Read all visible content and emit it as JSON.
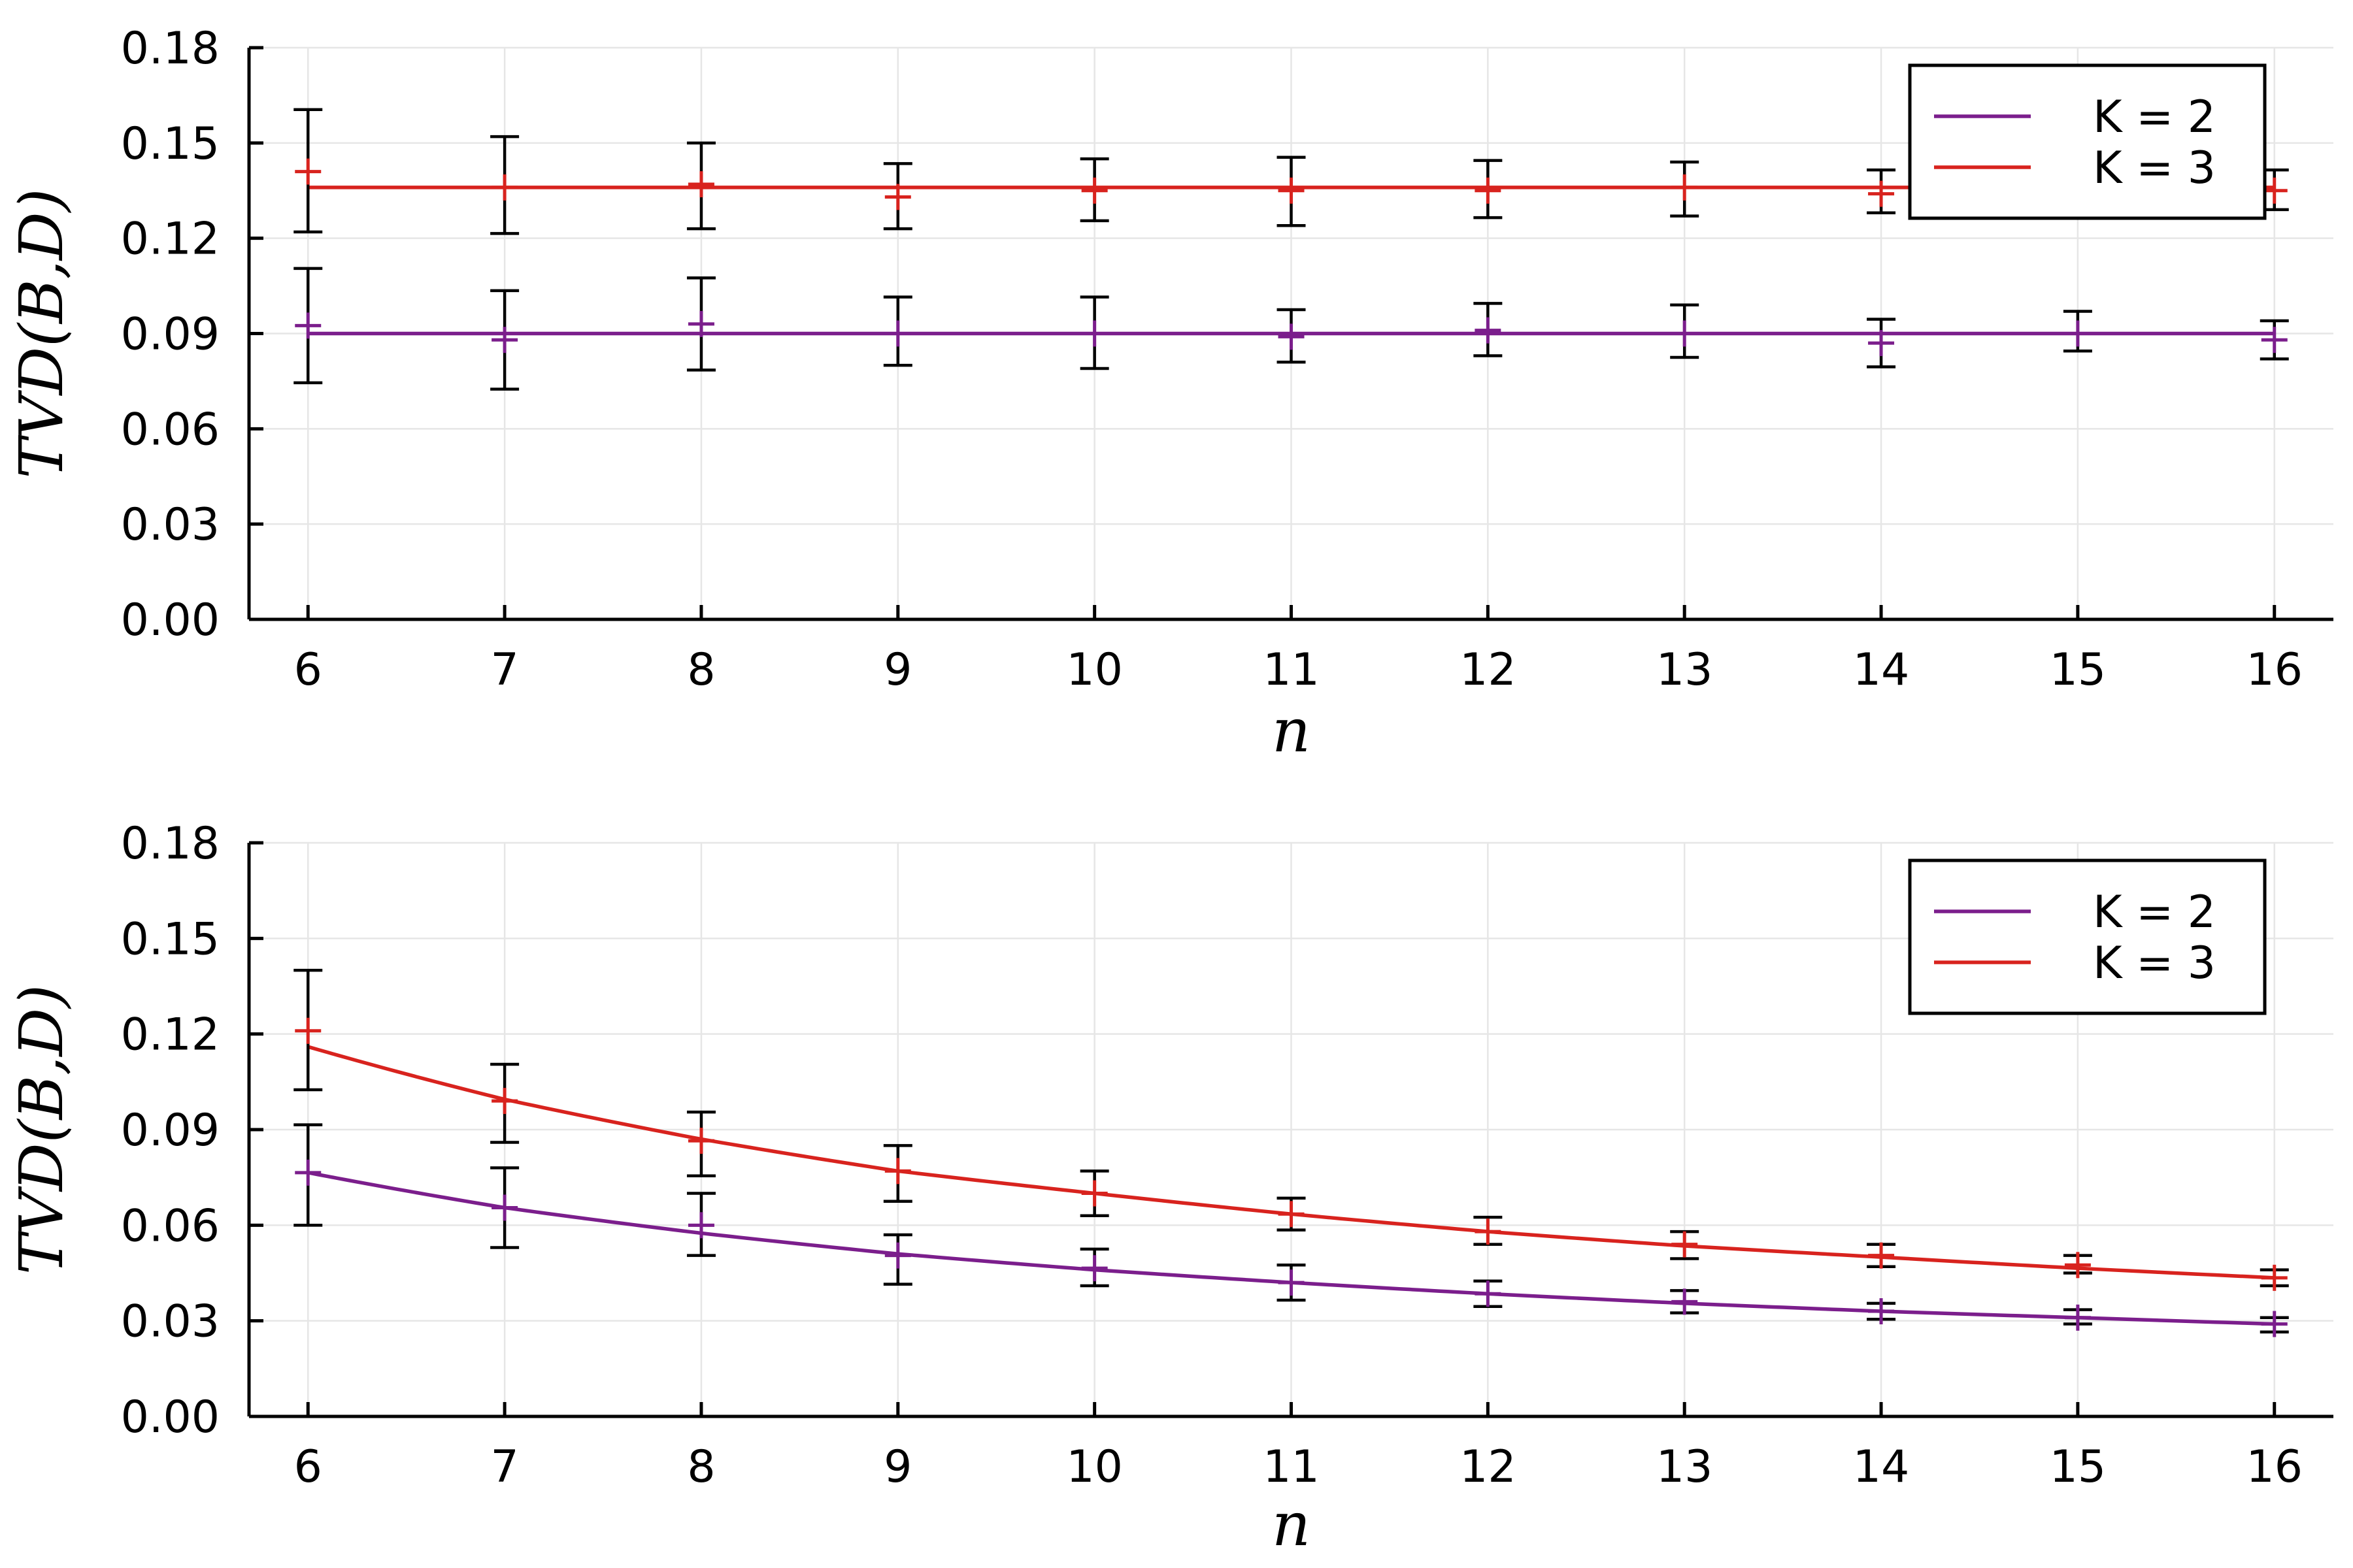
{
  "chart_data": [
    {
      "type": "line",
      "xlabel": "n",
      "ylabel": "TVD(B,D)",
      "xlim": [
        5.7,
        16.3
      ],
      "ylim": [
        0.0,
        0.18
      ],
      "xticks": [
        "6",
        "7",
        "8",
        "9",
        "10",
        "11",
        "12",
        "13",
        "14",
        "15",
        "16"
      ],
      "yticks": [
        "0.00",
        "0.03",
        "0.06",
        "0.09",
        "0.12",
        "0.15",
        "0.18"
      ],
      "grid": true,
      "legend_position": "top-right",
      "x": [
        6,
        7,
        8,
        9,
        10,
        11,
        12,
        13,
        14,
        15,
        16
      ],
      "series": [
        {
          "name": "K = 2",
          "color": "#7b1e8c",
          "fit": [
            0.09,
            0.09,
            0.09,
            0.09,
            0.09,
            0.09,
            0.09,
            0.09,
            0.09,
            0.09,
            0.09
          ],
          "points": [
            0.0925,
            0.088,
            0.093,
            0.09,
            0.09,
            0.089,
            0.091,
            0.09,
            0.087,
            0.09,
            0.088
          ],
          "err_low": [
            0.0745,
            0.0725,
            0.0785,
            0.08,
            0.079,
            0.081,
            0.083,
            0.0825,
            0.0795,
            0.0845,
            0.082
          ],
          "err_high": [
            0.1105,
            0.1035,
            0.1075,
            0.1015,
            0.1015,
            0.0975,
            0.0995,
            0.099,
            0.0945,
            0.097,
            0.094
          ]
        },
        {
          "name": "K = 3",
          "color": "#d8231e",
          "fit": [
            0.136,
            0.136,
            0.136,
            0.136,
            0.136,
            0.136,
            0.136,
            0.136,
            0.136,
            0.136,
            0.136
          ],
          "points": [
            0.141,
            0.136,
            0.137,
            0.133,
            0.135,
            0.135,
            0.135,
            0.136,
            0.134,
            0.136,
            0.135
          ],
          "err_low": [
            0.122,
            0.1215,
            0.123,
            0.123,
            0.1255,
            0.124,
            0.1265,
            0.127,
            0.128,
            0.13,
            0.129
          ],
          "err_high": [
            0.1605,
            0.152,
            0.15,
            0.1435,
            0.145,
            0.1455,
            0.1445,
            0.144,
            0.1415,
            0.142,
            0.1415
          ]
        }
      ]
    },
    {
      "type": "line",
      "xlabel": "n",
      "ylabel": "TVD(B,D)",
      "xlim": [
        5.7,
        16.3
      ],
      "ylim": [
        0.0,
        0.18
      ],
      "xticks": [
        "6",
        "7",
        "8",
        "9",
        "10",
        "11",
        "12",
        "13",
        "14",
        "15",
        "16"
      ],
      "yticks": [
        "0.00",
        "0.03",
        "0.06",
        "0.09",
        "0.12",
        "0.15",
        "0.18"
      ],
      "grid": true,
      "legend_position": "top-right",
      "x": [
        6,
        7,
        8,
        9,
        10,
        11,
        12,
        13,
        14,
        15,
        16
      ],
      "series": [
        {
          "name": "K = 2",
          "color": "#7b1e8c",
          "fit": [
            0.0765,
            0.0655,
            0.0575,
            0.051,
            0.046,
            0.042,
            0.0385,
            0.0355,
            0.033,
            0.031,
            0.029
          ],
          "points": [
            0.0765,
            0.0655,
            0.06,
            0.0505,
            0.0465,
            0.042,
            0.0385,
            0.036,
            0.033,
            0.031,
            0.029
          ],
          "err_low": [
            0.06,
            0.053,
            0.0505,
            0.0415,
            0.041,
            0.0365,
            0.0345,
            0.0325,
            0.0305,
            0.029,
            0.0265
          ],
          "err_high": [
            0.0915,
            0.078,
            0.07,
            0.057,
            0.0525,
            0.0475,
            0.0425,
            0.0395,
            0.0355,
            0.0335,
            0.031
          ]
        },
        {
          "name": "K = 3",
          "color": "#d8231e",
          "fit": [
            0.116,
            0.0995,
            0.087,
            0.077,
            0.07,
            0.0635,
            0.058,
            0.0535,
            0.05,
            0.0465,
            0.0435
          ],
          "points": [
            0.121,
            0.099,
            0.0865,
            0.077,
            0.07,
            0.0635,
            0.058,
            0.054,
            0.0505,
            0.0475,
            0.0435
          ],
          "err_low": [
            0.1025,
            0.086,
            0.0755,
            0.0675,
            0.063,
            0.0585,
            0.054,
            0.0495,
            0.047,
            0.045,
            0.041
          ],
          "err_high": [
            0.14,
            0.1105,
            0.0955,
            0.085,
            0.077,
            0.0685,
            0.0625,
            0.058,
            0.054,
            0.0505,
            0.046
          ]
        }
      ]
    }
  ]
}
